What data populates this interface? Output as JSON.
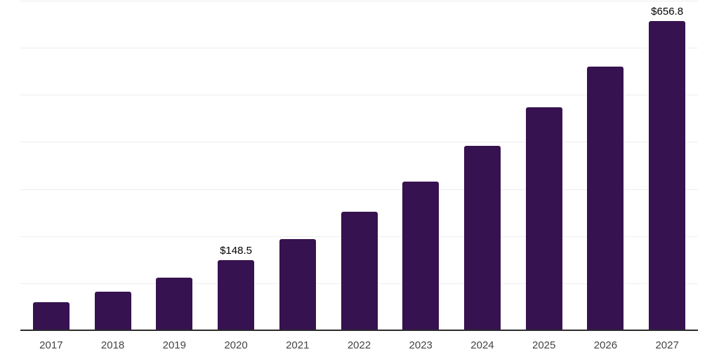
{
  "chart_data": {
    "type": "bar",
    "title": "",
    "xlabel": "",
    "ylabel": "",
    "categories": [
      "2017",
      "2018",
      "2019",
      "2020",
      "2021",
      "2022",
      "2023",
      "2024",
      "2025",
      "2026",
      "2027"
    ],
    "values": [
      60,
      82,
      112,
      148.5,
      194,
      252,
      316,
      392,
      473,
      560,
      656.8
    ],
    "point_labels": [
      "",
      "",
      "",
      "$148.5",
      "",
      "",
      "",
      "",
      "",
      "",
      "$656.8"
    ],
    "ylim": [
      0,
      700
    ],
    "gridline_step": 100,
    "grid": true,
    "legend_position": "none",
    "y_tick_labels_visible": false,
    "colors": {
      "bar": "#361250",
      "axis_line": "#2b2b2b",
      "gridline": "#eeeeee",
      "tick_label": "#444444",
      "data_label": "#000000",
      "background": "#ffffff"
    }
  }
}
